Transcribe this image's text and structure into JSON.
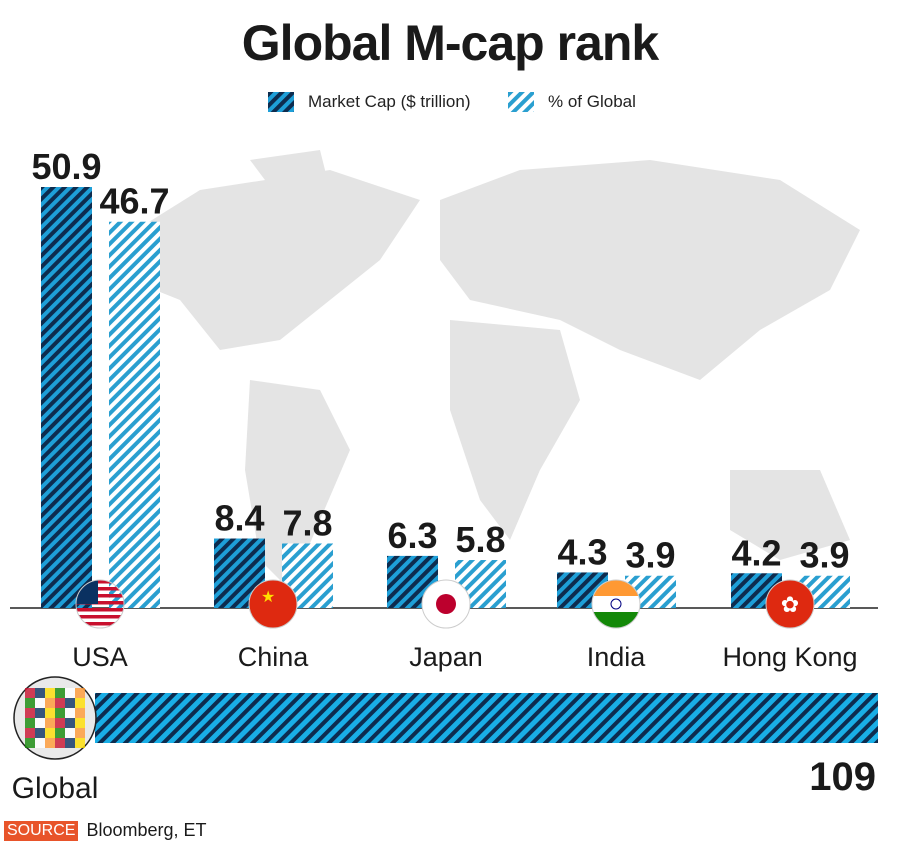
{
  "chart_data": {
    "type": "bar",
    "title": "Global M-cap rank",
    "categories": [
      "USA",
      "China",
      "Japan",
      "India",
      "Hong Kong"
    ],
    "series": [
      {
        "name": "Market Cap ($ trillion)",
        "values": [
          50.9,
          8.4,
          6.3,
          4.3,
          4.2
        ],
        "color": "#1e9fd8",
        "stripe": "#0d2c4f"
      },
      {
        "name": "% of Global",
        "values": [
          46.7,
          7.8,
          5.8,
          3.9,
          3.9
        ],
        "color": "#ffffff",
        "stripe": "#2a9fd0"
      }
    ],
    "total": {
      "label": "Global",
      "value": 109
    },
    "ylim": [
      0,
      50.9
    ],
    "grid": false,
    "legend": "top-center",
    "data_labels": true
  },
  "legend": {
    "market_cap": "Market Cap ($ trillion)",
    "pct_global": "% of Global"
  },
  "source": {
    "badge": "SOURCE",
    "text": "Bloomberg, ET"
  }
}
